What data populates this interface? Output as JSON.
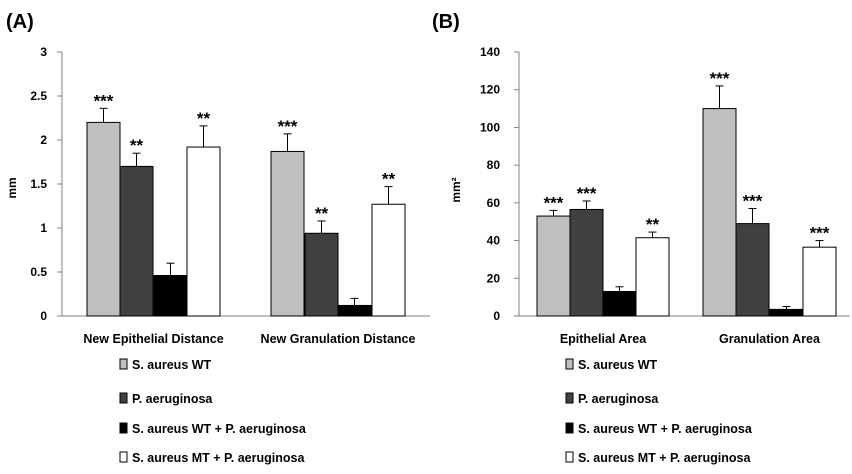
{
  "colors": {
    "s_aureus_wt": "#bfbfbf",
    "p_aeruginosa": "#404040",
    "wt_plus_pa": "#000000",
    "mt_plus_pa": "#ffffff",
    "axis": "#808080",
    "text": "#000000"
  },
  "chart_data": [
    {
      "panel_label": "(A)",
      "type": "bar",
      "ylabel": "mm",
      "xlabel": "",
      "ylim": [
        0,
        3
      ],
      "yticks": [
        "0",
        "0.5",
        "1",
        "1.5",
        "2",
        "2.5",
        "3"
      ],
      "grid": false,
      "legend_position": "bottom",
      "categories": [
        "New Epithelial Distance",
        "New Granulation Distance"
      ],
      "series": [
        {
          "name": "S. aureus WT",
          "values": [
            2.2,
            1.87
          ],
          "errors": [
            0.16,
            0.2
          ],
          "significance": [
            "***",
            "***"
          ]
        },
        {
          "name": "P. aeruginosa",
          "values": [
            1.7,
            0.94
          ],
          "errors": [
            0.15,
            0.14
          ],
          "significance": [
            "**",
            "**"
          ]
        },
        {
          "name": "S. aureus WT + P. aeruginosa",
          "values": [
            0.46,
            0.12
          ],
          "errors": [
            0.14,
            0.08
          ],
          "significance": [
            "",
            ""
          ]
        },
        {
          "name": "S. aureus MT + P. aeruginosa",
          "values": [
            1.92,
            1.27
          ],
          "errors": [
            0.24,
            0.2
          ],
          "significance": [
            "**",
            "**"
          ]
        }
      ]
    },
    {
      "panel_label": "(B)",
      "type": "bar",
      "ylabel": "mm²",
      "xlabel": "",
      "ylim": [
        0,
        140
      ],
      "yticks": [
        "0",
        "20",
        "40",
        "60",
        "80",
        "100",
        "120",
        "140"
      ],
      "grid": false,
      "legend_position": "bottom",
      "categories": [
        "Epithelial Area",
        "Granulation Area"
      ],
      "series": [
        {
          "name": "S. aureus WT",
          "values": [
            53,
            110
          ],
          "errors": [
            3,
            12
          ],
          "significance": [
            "***",
            "***"
          ]
        },
        {
          "name": "P. aeruginosa",
          "values": [
            56.5,
            49
          ],
          "errors": [
            4.5,
            8
          ],
          "significance": [
            "***",
            "***"
          ]
        },
        {
          "name": "S. aureus WT + P. aeruginosa",
          "values": [
            13,
            3.5
          ],
          "errors": [
            2.5,
            1.5
          ],
          "significance": [
            "",
            ""
          ]
        },
        {
          "name": "S. aureus MT + P. aeruginosa",
          "values": [
            41.5,
            36.5
          ],
          "errors": [
            3,
            3.5
          ],
          "significance": [
            "**",
            "***"
          ]
        }
      ]
    }
  ]
}
